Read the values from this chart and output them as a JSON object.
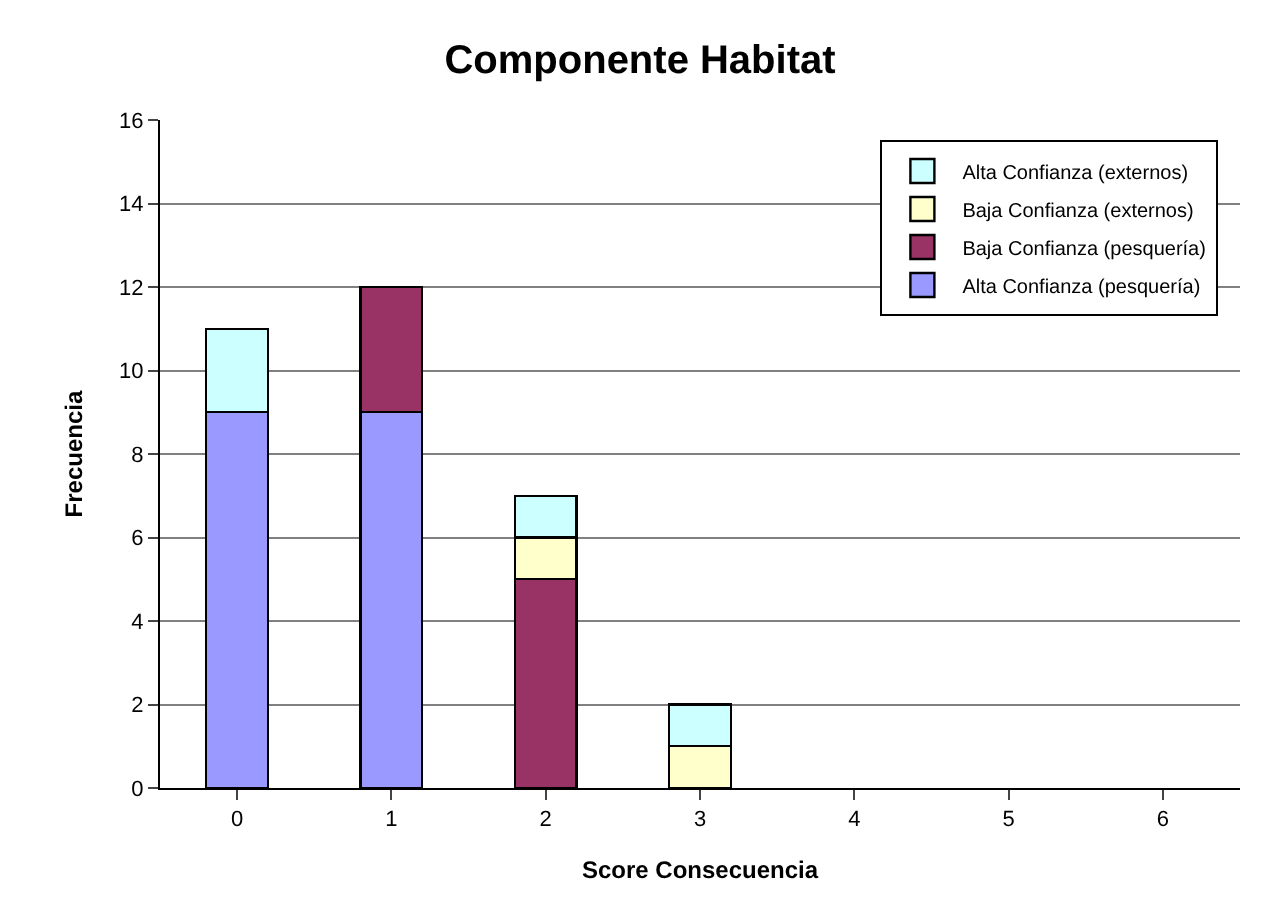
{
  "chart_data": {
    "type": "bar",
    "stacked": true,
    "title": "Componente Habitat",
    "xlabel": "Score Consecuencia",
    "ylabel": "Frecuencia",
    "categories": [
      "0",
      "1",
      "2",
      "3",
      "4",
      "5",
      "6"
    ],
    "series": [
      {
        "name": "Alta Confianza (pesquería)",
        "color": "#9999ff",
        "values": [
          9,
          9,
          null,
          null,
          null,
          null,
          null
        ]
      },
      {
        "name": "Baja Confianza (pesquería)",
        "color": "#993366",
        "values": [
          null,
          3,
          5,
          null,
          null,
          null,
          null
        ]
      },
      {
        "name": "Baja Confianza (externos)",
        "color": "#ffffcc",
        "values": [
          null,
          null,
          1,
          1,
          null,
          null,
          null
        ]
      },
      {
        "name": "Alta Confianza (externos)",
        "color": "#ccffff",
        "values": [
          2,
          null,
          1,
          1,
          null,
          null,
          null
        ]
      }
    ],
    "ylim": [
      0,
      16
    ],
    "yticks": [
      0,
      2,
      4,
      6,
      8,
      10,
      12,
      14,
      16
    ],
    "grid": "y",
    "legend": "top right"
  }
}
